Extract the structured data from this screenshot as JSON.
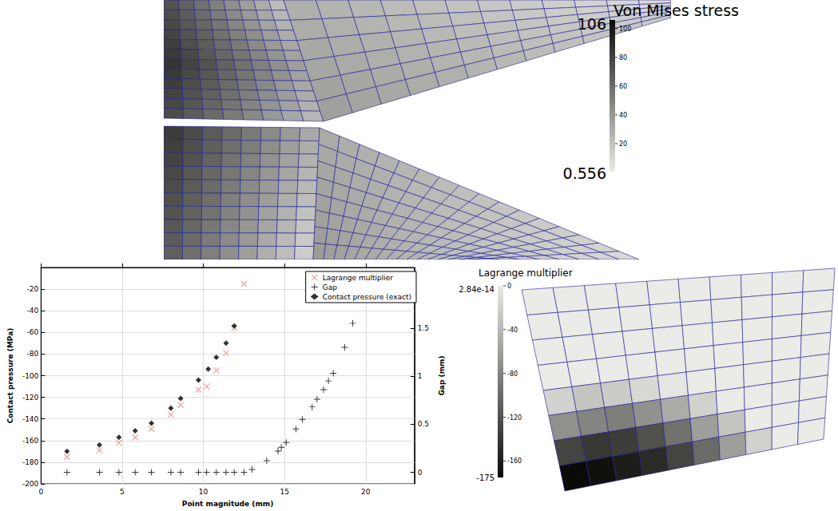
{
  "chart_data": {
    "type": "scatter",
    "x_label": "Point magnitude (mm)",
    "y_label": "Contact pressure (MPa)",
    "y2_label": "Gap (mm)",
    "xlim": [
      0,
      23
    ],
    "xticks": [
      0,
      5,
      10,
      15,
      20
    ],
    "ylim": [
      -200,
      0
    ],
    "yticks": [
      -200,
      -180,
      -160,
      -140,
      -120,
      -100,
      -80,
      -60,
      -40,
      -20
    ],
    "y2lim": [
      -0.12,
      2.13
    ],
    "y2ticks": [
      0,
      0.5,
      1,
      1.5
    ],
    "grid": true,
    "legend": "upper right",
    "series": [
      {
        "name": "Lagrange multiplier",
        "color": "#e8867c",
        "marker": "x",
        "x": [
          1.6,
          3.6,
          4.8,
          5.8,
          6.8,
          8.0,
          8.6,
          9.7,
          10.2,
          10.8,
          11.4,
          11.9,
          12.5
        ],
        "values": [
          -175,
          -169,
          -162,
          -157,
          -149,
          -136,
          -127,
          -113,
          -110,
          -95,
          -79,
          -56,
          -15
        ]
      },
      {
        "name": "Gap",
        "color": "#000000",
        "marker": "+",
        "axis": "y2",
        "x": [
          1.6,
          3.6,
          4.8,
          5.8,
          6.8,
          8.0,
          8.6,
          9.7,
          10.2,
          10.8,
          11.4,
          11.9,
          12.5,
          13.0,
          13.9,
          14.6,
          14.8,
          15.1,
          15.7,
          16.1,
          16.7,
          17.0,
          17.4,
          17.7,
          18.0,
          18.7,
          19.2
        ],
        "values": [
          0,
          0,
          0,
          0,
          0,
          0,
          0,
          0,
          0,
          0,
          0,
          0,
          0,
          0.03,
          0.12,
          0.22,
          0.26,
          0.31,
          0.45,
          0.55,
          0.68,
          0.76,
          0.86,
          0.95,
          1.03,
          1.3,
          1.55
        ]
      },
      {
        "name": "Contact pressure (exact)",
        "color": "#000000",
        "marker": "diamond",
        "x": [
          1.6,
          3.6,
          4.8,
          5.8,
          6.8,
          8.0,
          8.6,
          9.7,
          10.3,
          10.8,
          11.4,
          11.9
        ],
        "values": [
          -170,
          -164,
          -157,
          -151,
          -144,
          -130,
          -121,
          -104,
          -94,
          -83,
          -70,
          -54
        ]
      }
    ]
  },
  "stress_view": {
    "title": "Von MIses stress",
    "min": 0.556,
    "max": 106,
    "ticks": [
      20,
      40,
      60,
      80,
      100
    ]
  },
  "multiplier_view": {
    "title": "Lagrange multiplier",
    "min": -175,
    "max": {
      "value": 2.84e-14,
      "label": "2.84e-14"
    },
    "ticks": [
      -160,
      -120,
      -80,
      -40,
      0
    ],
    "cells": [
      [
        0,
        0,
        0,
        0,
        0,
        0,
        0,
        0,
        0,
        0
      ],
      [
        0,
        0,
        0,
        0,
        0,
        0,
        0,
        0,
        0,
        0
      ],
      [
        0,
        0,
        0,
        0,
        0,
        0,
        0,
        0,
        0,
        0
      ],
      [
        0,
        0,
        0,
        0,
        0,
        0,
        0,
        0,
        0,
        0
      ],
      [
        -20,
        -30,
        -25,
        -15,
        -5,
        0,
        0,
        0,
        0,
        0
      ],
      [
        -70,
        -80,
        -85,
        -70,
        -50,
        -20,
        0,
        0,
        0,
        0
      ],
      [
        -130,
        -140,
        -135,
        -120,
        -95,
        -60,
        -30,
        0,
        0,
        0
      ],
      [
        -175,
        -170,
        -160,
        -150,
        -130,
        -100,
        -60,
        -20,
        0,
        0
      ]
    ]
  }
}
